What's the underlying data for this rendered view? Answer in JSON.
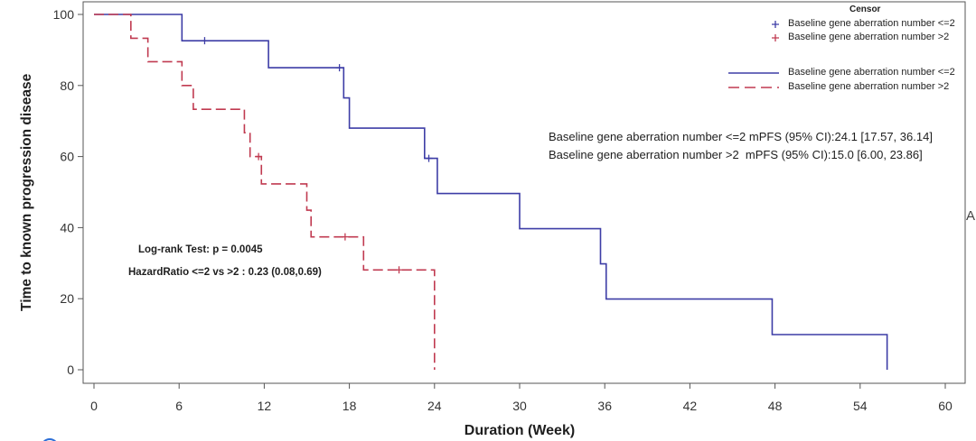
{
  "chart_data": {
    "type": "line",
    "title": "",
    "xlabel": "Duration (Week)",
    "ylabel": "Time to known progression disease",
    "xlim": [
      0,
      60
    ],
    "ylim": [
      0,
      100
    ],
    "xticks": [
      0,
      6,
      12,
      18,
      24,
      30,
      36,
      42,
      48,
      54,
      60
    ],
    "yticks": [
      0,
      20,
      40,
      60,
      80,
      100
    ],
    "grid": false,
    "series": [
      {
        "name": "Baseline gene aberration number <=2",
        "color": "#3d3da6",
        "dashed": false,
        "steps": [
          [
            0,
            100
          ],
          [
            6.2,
            92.6
          ],
          [
            12.3,
            85.0
          ],
          [
            17.6,
            76.5
          ],
          [
            18.0,
            68.0
          ],
          [
            23.3,
            59.5
          ],
          [
            24.2,
            49.6
          ],
          [
            30.0,
            39.7
          ],
          [
            35.7,
            29.8
          ],
          [
            36.1,
            19.9
          ],
          [
            47.8,
            9.9
          ],
          [
            55.9,
            0
          ]
        ],
        "censored": [
          [
            7.8,
            92.6
          ],
          [
            17.3,
            85.0
          ],
          [
            23.6,
            59.5
          ]
        ]
      },
      {
        "name": "Baseline gene aberration number >2",
        "color": "#c03a50",
        "dashed": true,
        "steps": [
          [
            0,
            100
          ],
          [
            2.6,
            93.3
          ],
          [
            3.8,
            86.7
          ],
          [
            6.2,
            80.0
          ],
          [
            7.0,
            73.3
          ],
          [
            10.6,
            66.7
          ],
          [
            11.0,
            60.0
          ],
          [
            11.8,
            52.3
          ],
          [
            15.0,
            44.9
          ],
          [
            15.3,
            37.4
          ],
          [
            19.0,
            28.1
          ],
          [
            24.0,
            0
          ]
        ],
        "censored": [
          [
            11.6,
            60.0
          ],
          [
            17.7,
            37.4
          ],
          [
            21.5,
            28.1
          ]
        ]
      }
    ],
    "legend": {
      "position": "top-right",
      "censor_title": "Censor"
    },
    "annotations": {
      "mpfs_le2": "Baseline gene aberration number <=2 mPFS (95% CI):24.1 [17.57, 36.14]",
      "mpfs_gt2": "Baseline gene aberration number >2  mPFS (95% CI):15.0 [6.00, 23.86]",
      "logrank": "Log-rank Test: p = 0.0045",
      "hazard_ratio": "HazardRatio <=2 vs >2 : 0.23 (0.08,0.69)"
    }
  },
  "fragments": {
    "next_panel_letter": "A",
    "logo_color": "#2d6fd6"
  }
}
